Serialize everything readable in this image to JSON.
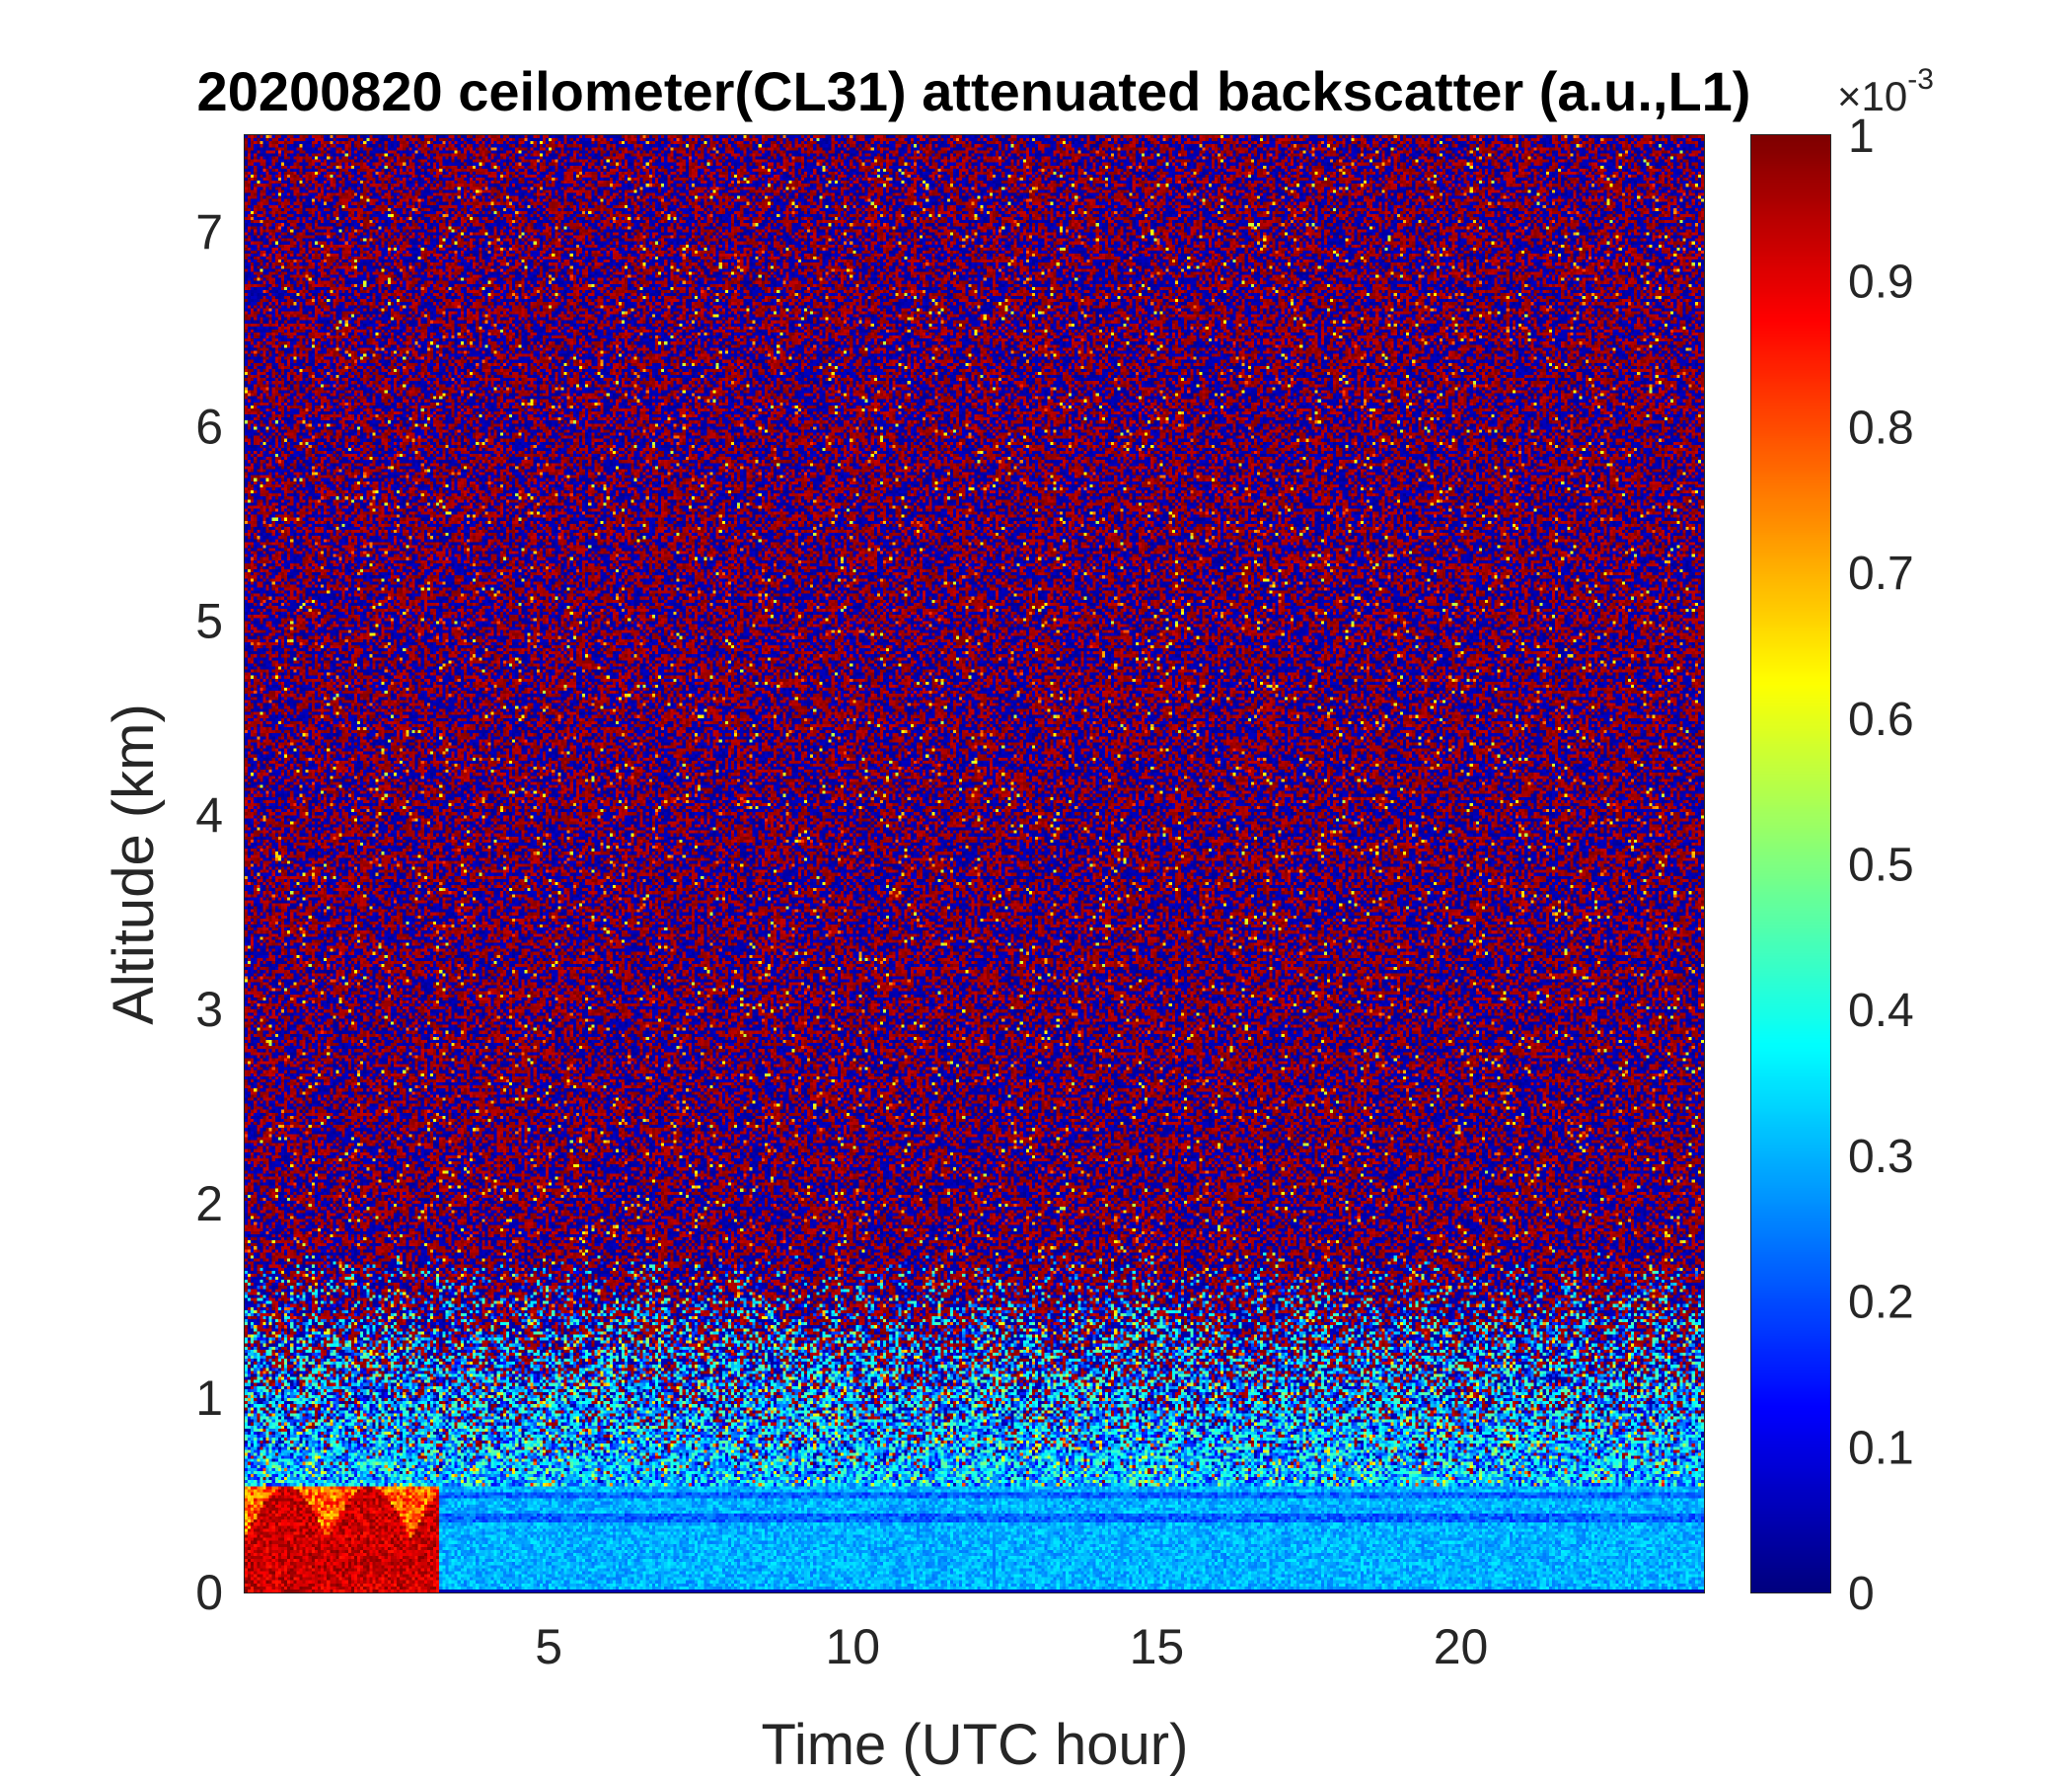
{
  "chart_data": {
    "type": "heatmap",
    "title": "20200820 ceilometer(CL31) attenuated backscatter (a.u.,L1)",
    "xlabel": "Time (UTC hour)",
    "ylabel": "Altitude (km)",
    "xlim": [
      0,
      24
    ],
    "ylim": [
      0,
      7.5
    ],
    "xticks": [
      5,
      10,
      15,
      20
    ],
    "yticks": [
      0,
      1,
      2,
      3,
      4,
      5,
      6,
      7
    ],
    "colorbar": {
      "colormap": "jet",
      "range": [
        0,
        1
      ],
      "ticks": [
        "0",
        "0.1",
        "0.2",
        "0.3",
        "0.4",
        "0.5",
        "0.6",
        "0.7",
        "0.8",
        "0.9",
        "1"
      ],
      "multiplier_base": "×10",
      "multiplier_exponent": "-3",
      "colors": {
        "low": "#00008f",
        "blue": "#0000ff",
        "cyan": "#00ffff",
        "yellow": "#ffff00",
        "red": "#ff0000",
        "high": "#800000"
      }
    },
    "features": {
      "upper_noise": "random noise alternating dark red and dark blue above about 1.5 km",
      "boundary_layer_top_km": 0.6,
      "aerosol_layer_km": [
        0.05,
        0.55
      ],
      "aerosol_layer_typical_value": 0.3,
      "low_cloud_hours": [
        0,
        3.2
      ],
      "low_cloud_top_km": 0.55,
      "low_cloud_value": 1.0
    }
  }
}
